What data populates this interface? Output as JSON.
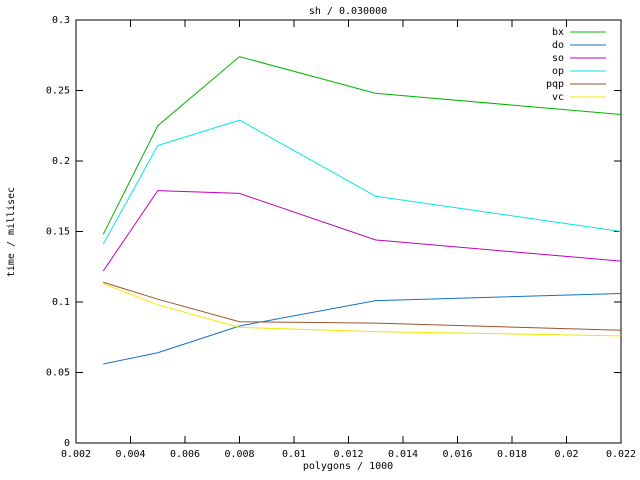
{
  "window": {
    "background": "#ffffff",
    "foreground": "#000000"
  },
  "chart_data": {
    "type": "line",
    "title": "sh / 0.030000",
    "xlabel": "polygons / 1000",
    "ylabel": "time / millisec",
    "xlim": [
      0.002,
      0.022
    ],
    "ylim": [
      0,
      0.3
    ],
    "grid": false,
    "legend_position": "top-right-inside",
    "legend_frame": false,
    "xticks": {
      "values": [
        0.002,
        0.004,
        0.006,
        0.008,
        0.01,
        0.012,
        0.014,
        0.016,
        0.018,
        0.02,
        0.022
      ],
      "labels": [
        "0.002",
        "0.004",
        "0.006",
        "0.008",
        "0.01",
        "0.012",
        "0.014",
        "0.016",
        "0.018",
        "0.02",
        "0.022"
      ]
    },
    "yticks": {
      "values": [
        0,
        0.05,
        0.1,
        0.15,
        0.2,
        0.25,
        0.3
      ],
      "labels": [
        "0",
        "0.05",
        "0.1",
        "0.15",
        "0.2",
        "0.25",
        "0.3"
      ]
    },
    "x": [
      0.003,
      0.005,
      0.008,
      0.013,
      0.022
    ],
    "series": [
      {
        "name": "bx",
        "color": "#00b400",
        "values": [
          0.148,
          0.225,
          0.274,
          0.248,
          0.233
        ]
      },
      {
        "name": "do",
        "color": "#1470c8",
        "values": [
          0.056,
          0.064,
          0.083,
          0.101,
          0.106
        ]
      },
      {
        "name": "so",
        "color": "#be00be",
        "values": [
          0.122,
          0.179,
          0.177,
          0.144,
          0.129
        ]
      },
      {
        "name": "op",
        "color": "#00e6e6",
        "values": [
          0.141,
          0.211,
          0.229,
          0.175,
          0.15
        ]
      },
      {
        "name": "pqp",
        "color": "#a0522d",
        "values": [
          0.114,
          0.102,
          0.086,
          0.085,
          0.08
        ]
      },
      {
        "name": "vc",
        "color": "#ebeb00",
        "values": [
          0.113,
          0.098,
          0.082,
          0.079,
          0.076
        ]
      }
    ]
  }
}
